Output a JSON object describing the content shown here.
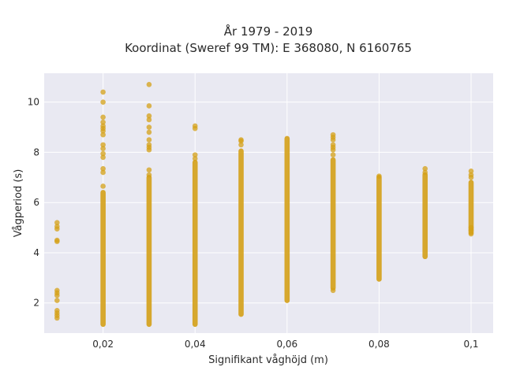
{
  "chart_data": {
    "type": "scatter",
    "title_line1": "År 1979 - 2019",
    "title_line2": "Koordinat (Sweref 99 TM): E 368080, N 6160765",
    "xlabel": "Signifikant våghöjd (m)",
    "ylabel": "Vågperiod (s)",
    "xlim": [
      0.0072,
      0.1048
    ],
    "ylim": [
      0.8,
      11.15
    ],
    "grid": true,
    "marker_color": "#D4A017",
    "x_tick_values": [
      0.02,
      0.04,
      0.06,
      0.08,
      0.1
    ],
    "x_tick_labels": [
      "0,02",
      "0,04",
      "0,06",
      "0,08",
      "0,1"
    ],
    "y_tick_values": [
      2,
      4,
      6,
      8,
      10
    ],
    "y_tick_labels": [
      "2",
      "4",
      "6",
      "8",
      "10"
    ],
    "columns": [
      {
        "x": 0.01,
        "points": [
          1.4,
          1.5,
          1.6,
          1.7,
          2.1,
          2.3,
          2.4,
          2.5,
          4.45,
          4.5,
          4.95,
          5.05,
          5.2
        ]
      },
      {
        "x": 0.02,
        "dense": [
          1.15,
          6.4
        ],
        "points": [
          6.65,
          7.2,
          7.35,
          7.8,
          7.95,
          8.15,
          8.3,
          8.7,
          8.85,
          8.95,
          9.05,
          9.2,
          9.4,
          10.0,
          10.4
        ]
      },
      {
        "x": 0.03,
        "dense": [
          1.15,
          7.0
        ],
        "points": [
          7.1,
          7.3,
          8.1,
          8.2,
          8.3,
          8.5,
          8.8,
          9.0,
          9.3,
          9.45,
          9.85,
          10.7
        ]
      },
      {
        "x": 0.04,
        "dense": [
          1.15,
          7.6
        ],
        "points": [
          7.75,
          7.9,
          8.95,
          9.05
        ]
      },
      {
        "x": 0.05,
        "dense": [
          1.55,
          8.05
        ],
        "points": [
          8.3,
          8.45,
          8.5
        ]
      },
      {
        "x": 0.06,
        "dense": [
          2.1,
          8.55
        ],
        "points": []
      },
      {
        "x": 0.07,
        "dense": [
          2.6,
          7.7
        ],
        "points": [
          2.5,
          7.9,
          8.1,
          8.2,
          8.3,
          8.5,
          8.6,
          8.7
        ]
      },
      {
        "x": 0.08,
        "dense": [
          2.95,
          7.0
        ],
        "points": [
          7.05
        ]
      },
      {
        "x": 0.09,
        "dense": [
          3.85,
          7.1
        ],
        "points": [
          7.2,
          7.35
        ]
      },
      {
        "x": 0.1,
        "dense": [
          4.8,
          6.8
        ],
        "points": [
          4.75,
          4.9,
          5.0,
          7.0,
          7.1,
          7.25
        ]
      }
    ]
  }
}
